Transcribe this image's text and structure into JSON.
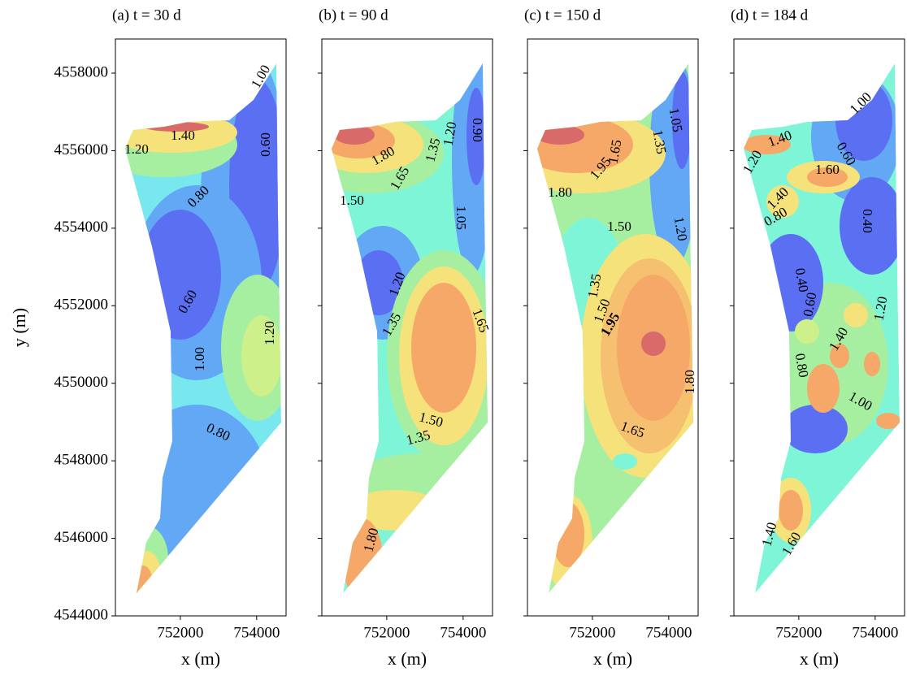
{
  "chart_data": [
    {
      "type": "contour",
      "title": "(a) t = 30 d",
      "xlabel": "x (m)",
      "ylabel": "y (m)",
      "xlim": [
        750300,
        754770
      ],
      "ylim": [
        4544000,
        4558880
      ],
      "xticks": [
        752000,
        754000
      ],
      "yticks": [
        4544000,
        4546000,
        4548000,
        4550000,
        4552000,
        4554000,
        4556000,
        4558000
      ],
      "contour_labels": [
        {
          "value": 1.0,
          "label": "1.00"
        },
        {
          "value": 1.4,
          "label": "1.40"
        },
        {
          "value": 1.2,
          "label": "1.20"
        },
        {
          "value": 0.6,
          "label": "0.60"
        },
        {
          "value": 0.8,
          "label": "0.80"
        },
        {
          "value": 0.6,
          "label": "0.60"
        },
        {
          "value": 1.0,
          "label": "1.00"
        },
        {
          "value": 1.2,
          "label": "1.20"
        },
        {
          "value": 0.8,
          "label": "0.80"
        }
      ]
    },
    {
      "type": "contour",
      "title": "(b) t = 90 d",
      "xlabel": "x (m)",
      "xlim": [
        750300,
        754770
      ],
      "ylim": [
        4544000,
        4558880
      ],
      "xticks": [
        752000,
        754000
      ],
      "yticks": [
        4544000,
        4546000,
        4548000,
        4550000,
        4552000,
        4554000,
        4556000,
        4558000
      ],
      "contour_labels": [
        {
          "value": 0.9,
          "label": "0.90"
        },
        {
          "value": 1.2,
          "label": "1.20"
        },
        1.35,
        {
          "value": 1.8,
          "label": "1.80"
        },
        1.65,
        {
          "value": 1.5,
          "label": "1.50"
        },
        1.05,
        {
          "value": 1.2,
          "label": "1.20"
        },
        1.35,
        1.65,
        {
          "value": 1.5,
          "label": "1.50"
        },
        1.35,
        {
          "value": 1.8,
          "label": "1.80"
        }
      ]
    },
    {
      "type": "contour",
      "title": "(c) t = 150 d",
      "xlabel": "x (m)",
      "xlim": [
        750300,
        754770
      ],
      "ylim": [
        4544000,
        4558880
      ],
      "xticks": [
        752000,
        754000
      ],
      "yticks": [
        4544000,
        4546000,
        4548000,
        4550000,
        4552000,
        4554000,
        4556000,
        4558000
      ],
      "contour_labels": [
        1.05,
        1.35,
        1.65,
        1.95,
        {
          "value": 1.8,
          "label": "1.80"
        },
        {
          "value": 1.5,
          "label": "1.50"
        },
        {
          "value": 1.2,
          "label": "1.20"
        },
        1.35,
        {
          "value": 1.5,
          "label": "1.50"
        },
        1.95,
        {
          "value": 1.8,
          "label": "1.80"
        },
        1.65
      ]
    },
    {
      "type": "contour",
      "title": "(d) t = 184 d",
      "xlabel": "x (m)",
      "xlim": [
        750300,
        754770
      ],
      "ylim": [
        4544000,
        4558880
      ],
      "xticks": [
        752000,
        754000
      ],
      "yticks": [
        4544000,
        4546000,
        4548000,
        4550000,
        4552000,
        4554000,
        4556000,
        4558000
      ],
      "contour_labels": [
        {
          "value": 1.0,
          "label": "1.00"
        },
        {
          "value": 1.4,
          "label": "1.40"
        },
        {
          "value": 1.2,
          "label": "1.20"
        },
        {
          "value": 0.6,
          "label": "0.60"
        },
        {
          "value": 1.6,
          "label": "1.60"
        },
        {
          "value": 1.4,
          "label": "1.40"
        },
        {
          "value": 0.8,
          "label": "0.80"
        },
        {
          "value": 0.4,
          "label": "0.40"
        },
        {
          "value": 0.4,
          "label": "0.40"
        },
        {
          "value": 0.6,
          "label": "0.60"
        },
        {
          "value": 1.2,
          "label": "1.20"
        },
        {
          "value": 1.4,
          "label": "1.40"
        },
        {
          "value": 0.8,
          "label": "0.80"
        },
        {
          "value": 1.0,
          "label": "1.00"
        },
        {
          "value": 1.4,
          "label": "1.40"
        },
        {
          "value": 1.6,
          "label": "1.60"
        }
      ]
    }
  ]
}
